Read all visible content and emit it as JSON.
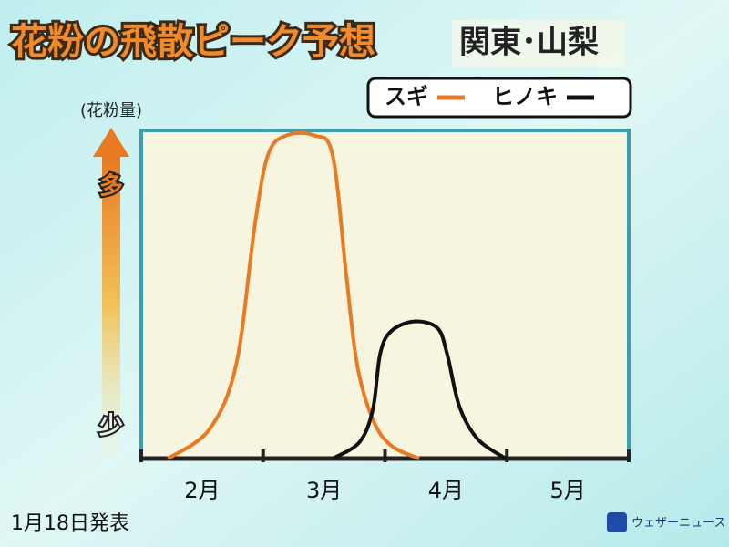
{
  "chart_data": {
    "type": "line",
    "title": "花粉の飛散ピーク予想",
    "subtitle": "関東･山梨",
    "y_label": "(花粉量)",
    "y_high_label": "多",
    "y_low_label": "少",
    "categories": [
      "2月",
      "3月",
      "4月",
      "5月"
    ],
    "xlim": [
      0,
      4
    ],
    "ylim": [
      0,
      100
    ],
    "series": [
      {
        "name": "スギ",
        "color": "#e87a22",
        "x": [
          0.22,
          0.56,
          0.78,
          0.93,
          1.04,
          1.19,
          1.42,
          1.57,
          1.68,
          1.77,
          1.9,
          2.05,
          2.28
        ],
        "values": [
          0,
          9,
          29,
          71,
          93,
          99,
          99,
          93,
          57,
          29,
          12,
          4,
          0
        ]
      },
      {
        "name": "ヒノキ",
        "color": "#111111",
        "x": [
          1.57,
          1.79,
          1.9,
          1.96,
          2.05,
          2.24,
          2.43,
          2.51,
          2.61,
          2.76,
          2.99
        ],
        "values": [
          0,
          5,
          15,
          32,
          39,
          42,
          40,
          32,
          16,
          6,
          0
        ]
      }
    ],
    "note": "1月18日発表",
    "logo": "ウェザーニュース"
  }
}
